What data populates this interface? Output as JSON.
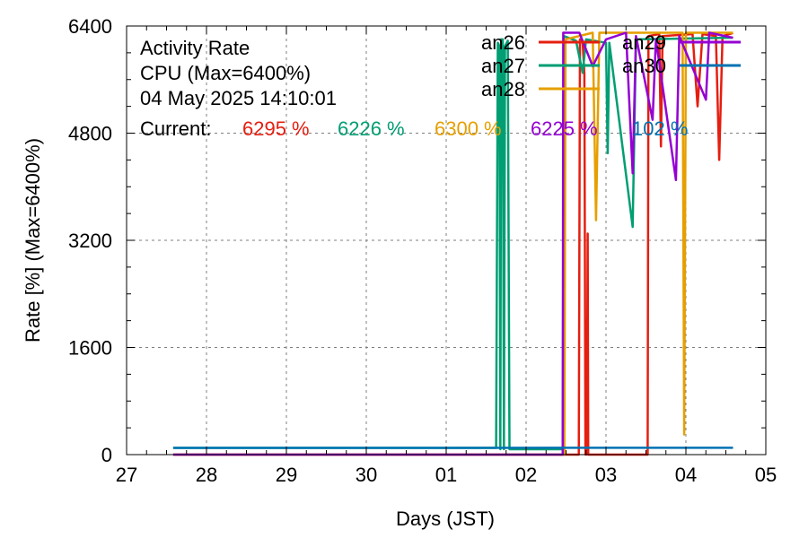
{
  "chart_data": {
    "type": "line",
    "title_lines": [
      "Activity Rate",
      "CPU (Max=6400%)",
      "04 May 2025 14:10:01"
    ],
    "current_label": "Current:",
    "xlabel": "Days (JST)",
    "ylabel": "Rate [%]  (Max=6400%)",
    "xlim": [
      "2025-04-27",
      "2025-05-05"
    ],
    "ylim": [
      0,
      6400
    ],
    "yticks": [
      0,
      1600,
      3200,
      4800,
      6400
    ],
    "xticks": [
      {
        "date": "2025-04-27",
        "label": "27"
      },
      {
        "date": "2025-04-28",
        "label": "28"
      },
      {
        "date": "2025-04-29",
        "label": "29"
      },
      {
        "date": "2025-04-30",
        "label": "30"
      },
      {
        "date": "2025-05-01",
        "label": "01"
      },
      {
        "date": "2025-05-02",
        "label": "02"
      },
      {
        "date": "2025-05-03",
        "label": "03"
      },
      {
        "date": "2025-05-04",
        "label": "04"
      },
      {
        "date": "2025-05-05",
        "label": "05"
      }
    ],
    "grid": true,
    "legend_position": "top-right",
    "series": [
      {
        "name": "an26",
        "color": "#e51e10",
        "current": "6295 %",
        "points": [
          [
            "2025-04-27 14:00",
            0
          ],
          [
            "2025-05-02 15:50",
            0
          ],
          [
            "2025-05-02 16:10",
            6200
          ],
          [
            "2025-05-02 17:00",
            6150
          ],
          [
            "2025-05-02 17:30",
            5700
          ],
          [
            "2025-05-02 17:40",
            3000
          ],
          [
            "2025-05-02 17:50",
            0
          ],
          [
            "2025-05-02 18:05",
            2000
          ],
          [
            "2025-05-02 18:15",
            0
          ],
          [
            "2025-05-02 18:30",
            3300
          ],
          [
            "2025-05-02 18:40",
            0
          ],
          [
            "2025-05-03 12:30",
            0
          ],
          [
            "2025-05-03 12:45",
            6250
          ],
          [
            "2025-05-03 16:00",
            6280
          ],
          [
            "2025-05-03 16:30",
            4600
          ],
          [
            "2025-05-03 17:00",
            6250
          ],
          [
            "2025-05-04 02:00",
            6280
          ],
          [
            "2025-05-04 03:30",
            5200
          ],
          [
            "2025-05-04 05:00",
            6280
          ],
          [
            "2025-05-04 09:00",
            6250
          ],
          [
            "2025-05-04 10:00",
            4400
          ],
          [
            "2025-05-04 11:00",
            6250
          ],
          [
            "2025-05-04 14:10",
            6295
          ]
        ]
      },
      {
        "name": "an27",
        "color": "#009e73",
        "current": "6226 %",
        "points": [
          [
            "2025-04-27 14:00",
            100
          ],
          [
            "2025-05-01 15:00",
            100
          ],
          [
            "2025-05-01 15:30",
            6150
          ],
          [
            "2025-05-01 16:00",
            6100
          ],
          [
            "2025-05-01 16:15",
            80
          ],
          [
            "2025-05-01 16:30",
            6200
          ],
          [
            "2025-05-01 17:00",
            6200
          ],
          [
            "2025-05-01 17:20",
            80
          ],
          [
            "2025-05-01 17:40",
            6100
          ],
          [
            "2025-05-01 18:30",
            6180
          ],
          [
            "2025-05-01 19:00",
            80
          ],
          [
            "2025-05-02 11:00",
            80
          ],
          [
            "2025-05-02 11:20",
            6250
          ],
          [
            "2025-05-02 15:00",
            6180
          ],
          [
            "2025-05-02 17:00",
            5700
          ],
          [
            "2025-05-02 18:00",
            6200
          ],
          [
            "2025-05-03 00:00",
            6150
          ],
          [
            "2025-05-03 00:30",
            4500
          ],
          [
            "2025-05-03 01:00",
            6150
          ],
          [
            "2025-05-03 08:00",
            3400
          ],
          [
            "2025-05-03 09:00",
            6200
          ],
          [
            "2025-05-04 14:10",
            6226
          ]
        ]
      },
      {
        "name": "an28",
        "color": "#e69f00",
        "current": "6300 %",
        "points": [
          [
            "2025-04-27 14:00",
            0
          ],
          [
            "2025-05-02 11:30",
            0
          ],
          [
            "2025-05-02 11:50",
            6200
          ],
          [
            "2025-05-02 20:00",
            6300
          ],
          [
            "2025-05-02 21:00",
            3500
          ],
          [
            "2025-05-02 22:00",
            6300
          ],
          [
            "2025-05-03 23:00",
            6300
          ],
          [
            "2025-05-03 23:30",
            300
          ],
          [
            "2025-05-04 00:00",
            6300
          ],
          [
            "2025-05-04 14:10",
            6300
          ]
        ]
      },
      {
        "name": "an29",
        "color": "#9400d3",
        "current": "6225 %",
        "points": [
          [
            "2025-04-27 14:00",
            0
          ],
          [
            "2025-05-02 11:00",
            0
          ],
          [
            "2025-05-02 11:10",
            6300
          ],
          [
            "2025-05-02 16:00",
            6300
          ],
          [
            "2025-05-02 20:00",
            5800
          ],
          [
            "2025-05-03 00:00",
            6200
          ],
          [
            "2025-05-03 06:00",
            6300
          ],
          [
            "2025-05-03 08:00",
            4200
          ],
          [
            "2025-05-03 09:00",
            6250
          ],
          [
            "2025-05-03 14:00",
            5000
          ],
          [
            "2025-05-03 15:00",
            6200
          ],
          [
            "2025-05-03 21:00",
            4100
          ],
          [
            "2025-05-03 22:00",
            6250
          ],
          [
            "2025-05-04 06:00",
            5300
          ],
          [
            "2025-05-04 07:00",
            6300
          ],
          [
            "2025-05-04 14:10",
            6225
          ]
        ]
      },
      {
        "name": "an30",
        "color": "#0072b2",
        "current": "102 %",
        "points": [
          [
            "2025-04-27 14:00",
            100
          ],
          [
            "2025-05-01 00:00",
            100
          ],
          [
            "2025-05-03 00:00",
            102
          ],
          [
            "2025-05-04 14:10",
            102
          ]
        ]
      }
    ]
  }
}
